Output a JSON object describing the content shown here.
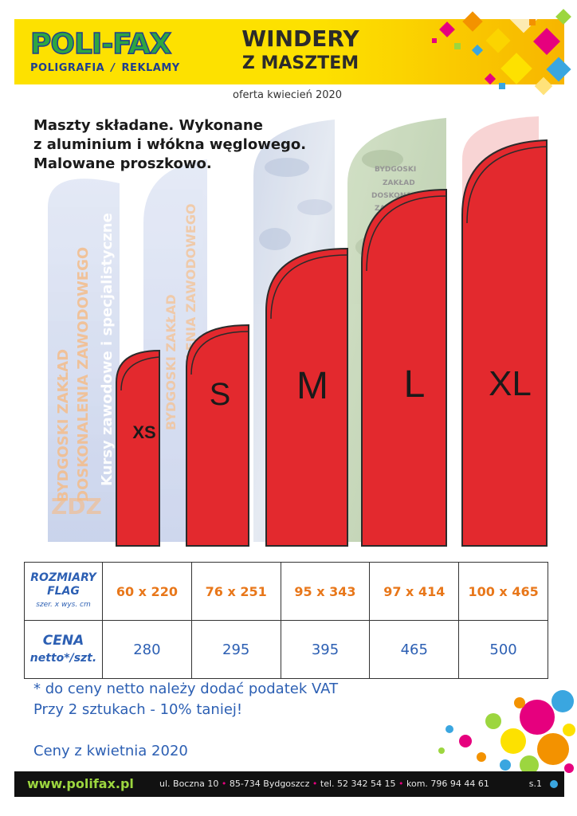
{
  "header": {
    "logo_main": "POLI-FAX",
    "logo_sub_left": "POLIGRAFIA",
    "logo_sub_right": "REKLAMY",
    "title_line1": "WINDERY",
    "title_line2": "Z MASZTEM"
  },
  "offer_date": "oferta kwiecień 2020",
  "intro": [
    "Maszty składane. Wykonane",
    "z aluminium i włókna węglowego.",
    "Malowane proszkowo."
  ],
  "flags": {
    "color": "#e3292e",
    "sizes": [
      "XS",
      "S",
      "M",
      "L",
      "XL"
    ],
    "background_text": [
      "BYDGOSKI ZAKŁAD",
      "DOSKONALENIA ZAWODOWEGO",
      "Kursy zawodowe i specjalistyczne",
      "ZDZ",
      "BYDGOSKI",
      "ZAKŁAD",
      "DOSKONALENIA",
      "ZAWODOWEGO"
    ]
  },
  "table": {
    "size_label_lines": [
      "ROZMIARY",
      "FLAG"
    ],
    "size_label_small": "szer. x wys. cm",
    "price_label_line1": "CENA",
    "price_label_line2": "netto*/szt.",
    "dimensions": [
      "60 x 220",
      "76 x 251",
      "95 x 343",
      "97 x 414",
      "100 x 465"
    ],
    "prices": [
      "280",
      "295",
      "395",
      "465",
      "500"
    ]
  },
  "notes": {
    "vat": "* do ceny netto należy dodać podatek VAT",
    "discount": "Przy 2 sztukach  - 10% taniej!",
    "prices_date": "Ceny z kwietnia 2020"
  },
  "footer": {
    "website": "www.polifax.pl",
    "street": "ul. Boczna 10",
    "city": "85-734 Bydgoszcz",
    "phone": "tel. 52 342 54 15",
    "mobile": "kom. 796 94 44 61",
    "page": "s.1"
  }
}
